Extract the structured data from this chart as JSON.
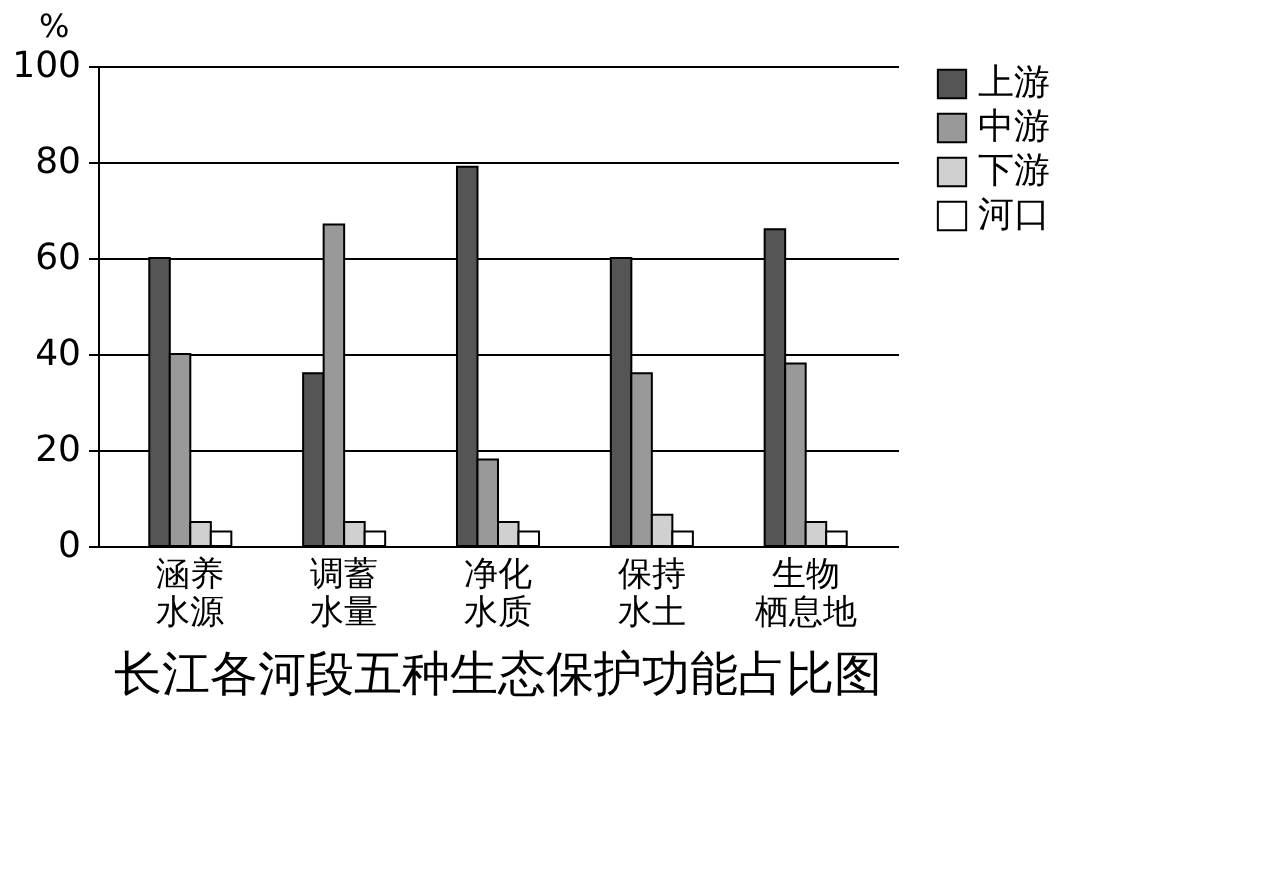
{
  "chart_data": {
    "type": "bar",
    "title": "长江各河段五种生态保护功能占比图",
    "ylabel": "%",
    "categories": [
      "涵养水源",
      "调蓄水量",
      "净化水质",
      "保持水土",
      "生物栖息地"
    ],
    "series": [
      {
        "name": "上游",
        "color": "#555555",
        "values": [
          60,
          36,
          79,
          60,
          66
        ]
      },
      {
        "name": "中游",
        "color": "#999999",
        "values": [
          40,
          67,
          18,
          36,
          38
        ]
      },
      {
        "name": "下游",
        "color": "#d0d0d0",
        "values": [
          5,
          5,
          5,
          6.5,
          5
        ]
      },
      {
        "name": "河口",
        "color": "#ffffff",
        "values": [
          3,
          3,
          3,
          3,
          3
        ]
      }
    ],
    "ylim": [
      0,
      100
    ],
    "yticks": [
      0,
      20,
      40,
      60,
      80,
      100
    ],
    "grid": "y",
    "legend": "right"
  }
}
